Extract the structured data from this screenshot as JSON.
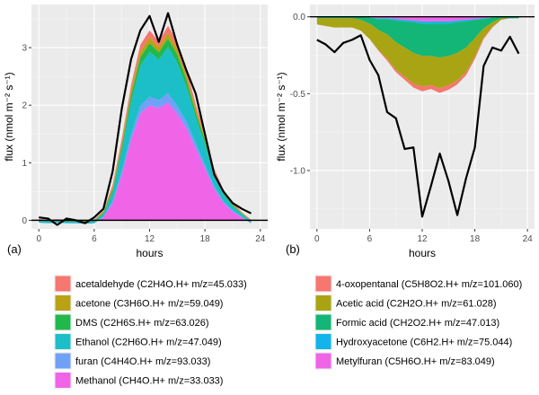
{
  "chart_data": [
    {
      "type": "area",
      "panel_label": "(a)",
      "xlabel": "hours",
      "ylabel": "flux (nmol m⁻² s⁻¹)",
      "xlim": [
        -0.8,
        24.8
      ],
      "ylim": [
        -0.15,
        3.75
      ],
      "x_ticks": [
        0,
        6,
        12,
        18,
        24
      ],
      "y_ticks": [
        0,
        1,
        2,
        3
      ],
      "grid": true,
      "stacking": "positive upward from zero",
      "x": [
        0,
        1,
        2,
        3,
        4,
        5,
        6,
        7,
        8,
        9,
        10,
        11,
        12,
        13,
        14,
        15,
        16,
        17,
        18,
        19,
        20,
        21,
        22,
        23
      ],
      "series": [
        {
          "name": "Methanol (CH4O.H+ m/z=33.033)",
          "color": "#f064e8",
          "values": [
            -0.04,
            -0.05,
            -0.04,
            -0.05,
            -0.05,
            -0.06,
            -0.05,
            0.05,
            0.3,
            0.8,
            1.4,
            1.85,
            2.0,
            1.95,
            2.05,
            1.85,
            1.6,
            1.25,
            0.9,
            0.55,
            0.3,
            0.15,
            0.05,
            -0.05
          ]
        },
        {
          "name": "furan  (C4H4O.H+ m/z=93.033)",
          "color": "#6fa1f7",
          "values": [
            0.0,
            0.0,
            0.0,
            0.0,
            0.0,
            0.0,
            0.0,
            0.01,
            0.03,
            0.06,
            0.1,
            0.14,
            0.15,
            0.14,
            0.16,
            0.14,
            0.12,
            0.09,
            0.07,
            0.04,
            0.03,
            0.02,
            0.01,
            0.0
          ]
        },
        {
          "name": "Ethanol (C2H6O.H+ m/z=47.049)",
          "color": "#1cbec8",
          "values": [
            0.03,
            0.03,
            0.03,
            0.03,
            0.03,
            0.03,
            0.03,
            0.05,
            0.15,
            0.35,
            0.55,
            0.7,
            0.78,
            0.7,
            0.8,
            0.75,
            0.6,
            0.45,
            0.35,
            0.2,
            0.12,
            0.08,
            0.05,
            0.03
          ]
        },
        {
          "name": "DMS (C2H6S.H+ m/z=63.026)",
          "color": "#22b84c",
          "values": [
            0.01,
            0.01,
            0.01,
            0.01,
            0.01,
            0.01,
            0.01,
            0.02,
            0.05,
            0.08,
            0.12,
            0.14,
            0.15,
            0.13,
            0.15,
            0.14,
            0.12,
            0.09,
            0.07,
            0.04,
            0.03,
            0.02,
            0.01,
            0.01
          ]
        },
        {
          "name": "acetone (C3H6O.H+ m/z=59.049)",
          "color": "#b9a214",
          "values": [
            0.01,
            0.01,
            0.01,
            0.01,
            0.01,
            0.01,
            0.01,
            0.02,
            0.04,
            0.06,
            0.08,
            0.1,
            0.1,
            0.09,
            0.1,
            0.1,
            0.08,
            0.06,
            0.05,
            0.03,
            0.02,
            0.02,
            0.01,
            0.01
          ]
        },
        {
          "name": "acetaldehyde (C2H4O.H+ m/z=45.033)",
          "color": "#f5776f",
          "values": [
            0.01,
            0.01,
            0.01,
            0.01,
            0.01,
            0.01,
            0.01,
            0.02,
            0.05,
            0.08,
            0.1,
            0.12,
            0.12,
            0.1,
            0.12,
            0.12,
            0.1,
            0.08,
            0.06,
            0.04,
            0.03,
            0.02,
            0.01,
            0.01
          ]
        }
      ],
      "total_line": {
        "color": "#000000",
        "values": [
          0.05,
          0.03,
          -0.08,
          0.03,
          0.0,
          -0.05,
          0.05,
          0.2,
          0.85,
          1.95,
          2.8,
          3.3,
          3.55,
          3.1,
          3.6,
          3.05,
          2.6,
          2.2,
          1.5,
          0.8,
          0.5,
          0.3,
          0.2,
          0.12
        ]
      }
    },
    {
      "type": "area",
      "panel_label": "(b)",
      "xlabel": "hours",
      "ylabel": "flux (nmol m⁻² s⁻¹)",
      "xlim": [
        -0.8,
        24.8
      ],
      "ylim": [
        -1.38,
        0.08
      ],
      "x_ticks": [
        0,
        6,
        12,
        18,
        24
      ],
      "y_ticks": [
        0.0,
        -0.5,
        -1.0
      ],
      "y_tick_labels": [
        "0.0",
        "-0.5",
        "-1.0"
      ],
      "grid": true,
      "stacking": "negative downward from zero",
      "x": [
        0,
        1,
        2,
        3,
        4,
        5,
        6,
        7,
        8,
        9,
        10,
        11,
        12,
        13,
        14,
        15,
        16,
        17,
        18,
        19,
        20,
        21,
        22,
        23
      ],
      "series": [
        {
          "name": "Metylfuran (C5H6O.H+ m/z=83.049)",
          "color": "#f064e8",
          "values": [
            0.0,
            0.0,
            0.0,
            0.0,
            0.0,
            0.0,
            -0.005,
            -0.01,
            -0.01,
            -0.015,
            -0.02,
            -0.025,
            -0.03,
            -0.03,
            -0.03,
            -0.03,
            -0.025,
            -0.02,
            -0.015,
            -0.01,
            -0.005,
            0.0,
            0.0,
            0.0
          ]
        },
        {
          "name": "Hydroxyacetone (C6H2.H+ m/z=75.044)",
          "color": "#12b4ea",
          "values": [
            0.0,
            0.0,
            0.0,
            0.0,
            0.0,
            0.0,
            0.0,
            -0.005,
            -0.005,
            -0.01,
            -0.01,
            -0.01,
            -0.015,
            -0.015,
            -0.015,
            -0.015,
            -0.01,
            -0.01,
            -0.005,
            -0.005,
            0.0,
            0.0,
            0.0,
            0.0
          ]
        },
        {
          "name": "Formic acid (CH2O2.H+ m/z=47.013)",
          "color": "#13b676",
          "values": [
            -0.01,
            -0.01,
            -0.01,
            -0.01,
            -0.01,
            -0.02,
            -0.04,
            -0.07,
            -0.1,
            -0.14,
            -0.17,
            -0.2,
            -0.21,
            -0.21,
            -0.22,
            -0.21,
            -0.2,
            -0.17,
            -0.12,
            -0.06,
            -0.03,
            -0.01,
            -0.01,
            -0.01
          ]
        },
        {
          "name": "Acetic acid (C2H2O.H+ m/z=61.028)",
          "color": "#a9a413",
          "values": [
            -0.04,
            -0.05,
            -0.06,
            -0.06,
            -0.06,
            -0.07,
            -0.1,
            -0.13,
            -0.16,
            -0.18,
            -0.19,
            -0.2,
            -0.2,
            -0.19,
            -0.2,
            -0.19,
            -0.18,
            -0.16,
            -0.12,
            -0.06,
            -0.03,
            -0.01,
            0.0,
            0.0
          ]
        },
        {
          "name": "4-oxopentanal (C5H8O2.H+ m/z=101.060)",
          "color": "#f5776f",
          "values": [
            0.0,
            0.0,
            0.0,
            0.0,
            0.0,
            0.0,
            0.0,
            -0.005,
            -0.01,
            -0.015,
            -0.02,
            -0.025,
            -0.03,
            -0.025,
            -0.03,
            -0.03,
            -0.025,
            -0.02,
            -0.015,
            -0.01,
            -0.005,
            0.0,
            0.0,
            0.0
          ]
        }
      ],
      "total_line": {
        "color": "#000000",
        "values": [
          -0.15,
          -0.18,
          -0.23,
          -0.17,
          -0.15,
          -0.12,
          -0.28,
          -0.38,
          -0.62,
          -0.66,
          -0.86,
          -0.85,
          -1.3,
          -1.1,
          -0.89,
          -1.07,
          -1.29,
          -1.05,
          -0.85,
          -0.32,
          -0.2,
          -0.22,
          -0.13,
          -0.24
        ]
      }
    }
  ],
  "legends": [
    {
      "items": [
        {
          "label": "acetaldehyde (C2H4O.H+ m/z=45.033)",
          "color": "#f5776f"
        },
        {
          "label": "acetone (C3H6O.H+ m/z=59.049)",
          "color": "#b9a214"
        },
        {
          "label": "DMS (C2H6S.H+ m/z=63.026)",
          "color": "#22b84c"
        },
        {
          "label": "Ethanol (C2H6O.H+ m/z=47.049)",
          "color": "#1cbec8"
        },
        {
          "label": "furan  (C4H4O.H+ m/z=93.033)",
          "color": "#6fa1f7"
        },
        {
          "label": "Methanol (CH4O.H+ m/z=33.033)",
          "color": "#f064e8"
        }
      ]
    },
    {
      "items": [
        {
          "label": "4-oxopentanal (C5H8O2.H+ m/z=101.060)",
          "color": "#f5776f"
        },
        {
          "label": "Acetic acid (C2H2O.H+ m/z=61.028)",
          "color": "#a9a413"
        },
        {
          "label": "Formic acid (CH2O2.H+ m/z=47.013)",
          "color": "#13b676"
        },
        {
          "label": "Hydroxyacetone (C6H2.H+ m/z=75.044)",
          "color": "#12b4ea"
        },
        {
          "label": "Metylfuran (C5H6O.H+ m/z=83.049)",
          "color": "#f064e8"
        }
      ]
    }
  ],
  "style": {
    "panel_bg": "#ebebeb",
    "grid_major": "#ffffff",
    "grid_minor": "#f5f5f5",
    "legend_bg": "#f2f2f2",
    "zero_line": "#000000"
  }
}
